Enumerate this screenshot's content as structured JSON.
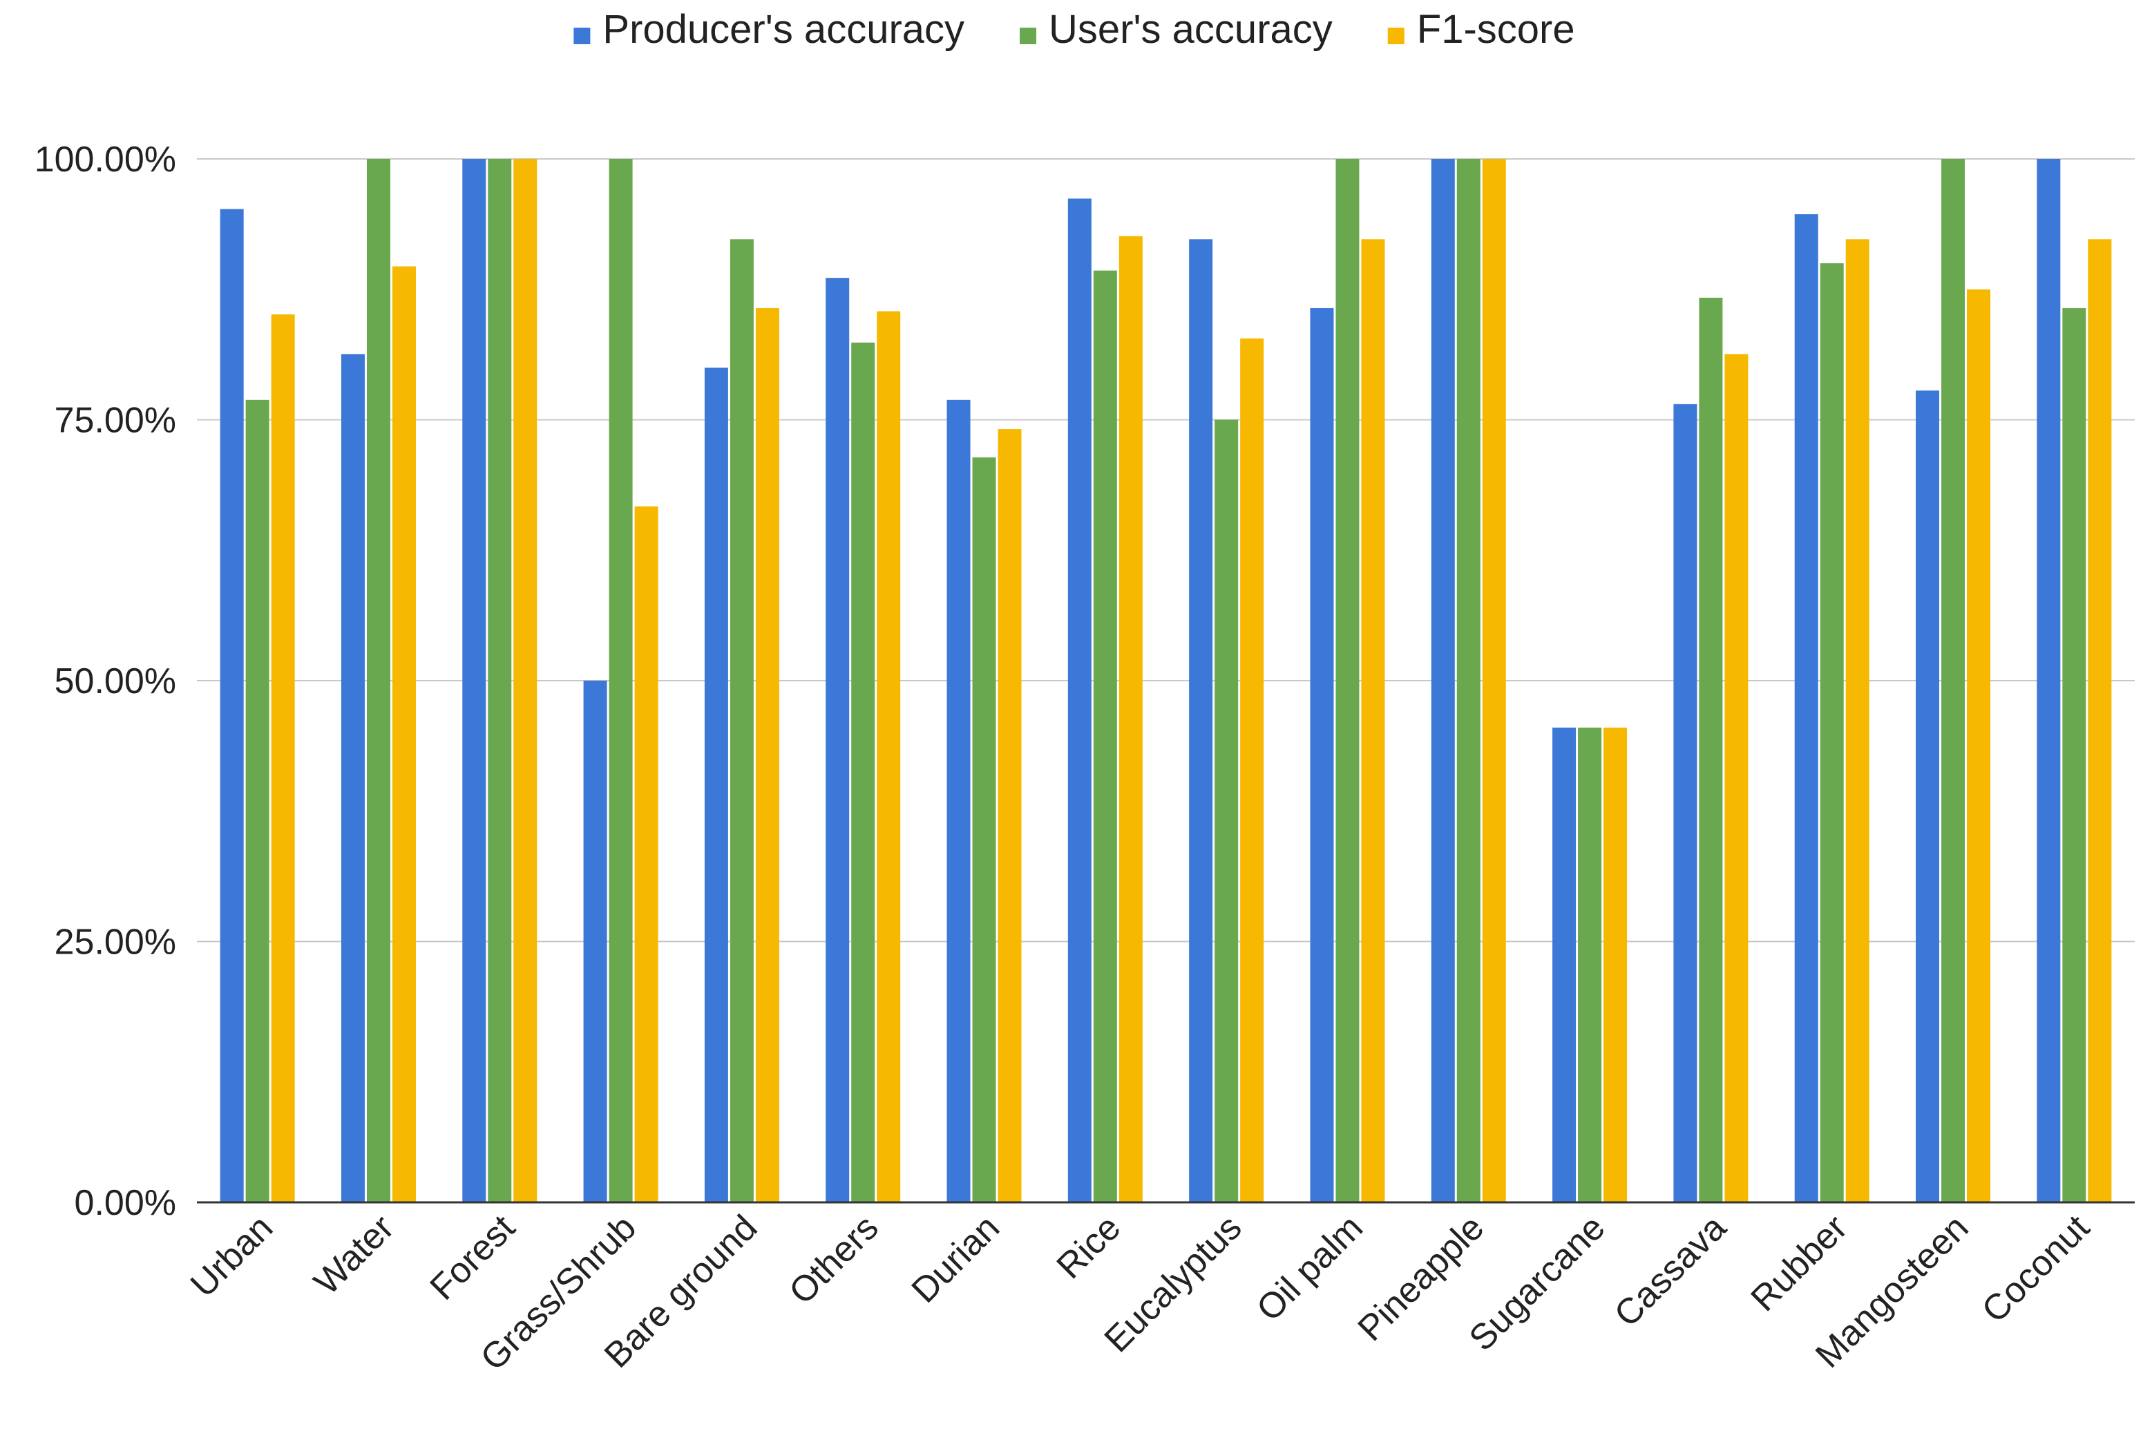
{
  "chart_data": {
    "type": "bar",
    "title": "",
    "xlabel": "",
    "ylabel": "",
    "ylim": [
      0,
      100
    ],
    "yticks": [
      "0.00%",
      "25.00%",
      "50.00%",
      "75.00%",
      "100.00%"
    ],
    "grid": true,
    "legend_position": "top",
    "categories": [
      "Urban",
      "Water",
      "Forest",
      "Grass/Shrub",
      "Bare ground",
      "Others",
      "Durian",
      "Rice",
      "Eucalyptus",
      "Oil palm",
      "Pineapple",
      "Sugarcane",
      "Cassava",
      "Rubber",
      "Mangosteen",
      "Coconut"
    ],
    "series": [
      {
        "name": "Producer's accuracy",
        "color": "#3c78d8",
        "values": [
          95.2,
          81.3,
          100,
          50.0,
          80.0,
          88.6,
          76.9,
          96.2,
          92.3,
          85.7,
          100,
          45.5,
          76.5,
          94.7,
          77.8,
          100
        ]
      },
      {
        "name": "User's accuracy",
        "color": "#6aa84f",
        "values": [
          76.9,
          100,
          100,
          100,
          92.3,
          82.4,
          71.4,
          89.3,
          75.0,
          100,
          100,
          45.5,
          86.7,
          90.0,
          100,
          85.7
        ]
      },
      {
        "name": "F1-score",
        "color": "#f6b800",
        "values": [
          85.1,
          89.7,
          100,
          66.7,
          85.7,
          85.4,
          74.1,
          92.6,
          82.8,
          92.3,
          100,
          45.5,
          81.3,
          92.3,
          87.5,
          92.3
        ]
      }
    ]
  }
}
